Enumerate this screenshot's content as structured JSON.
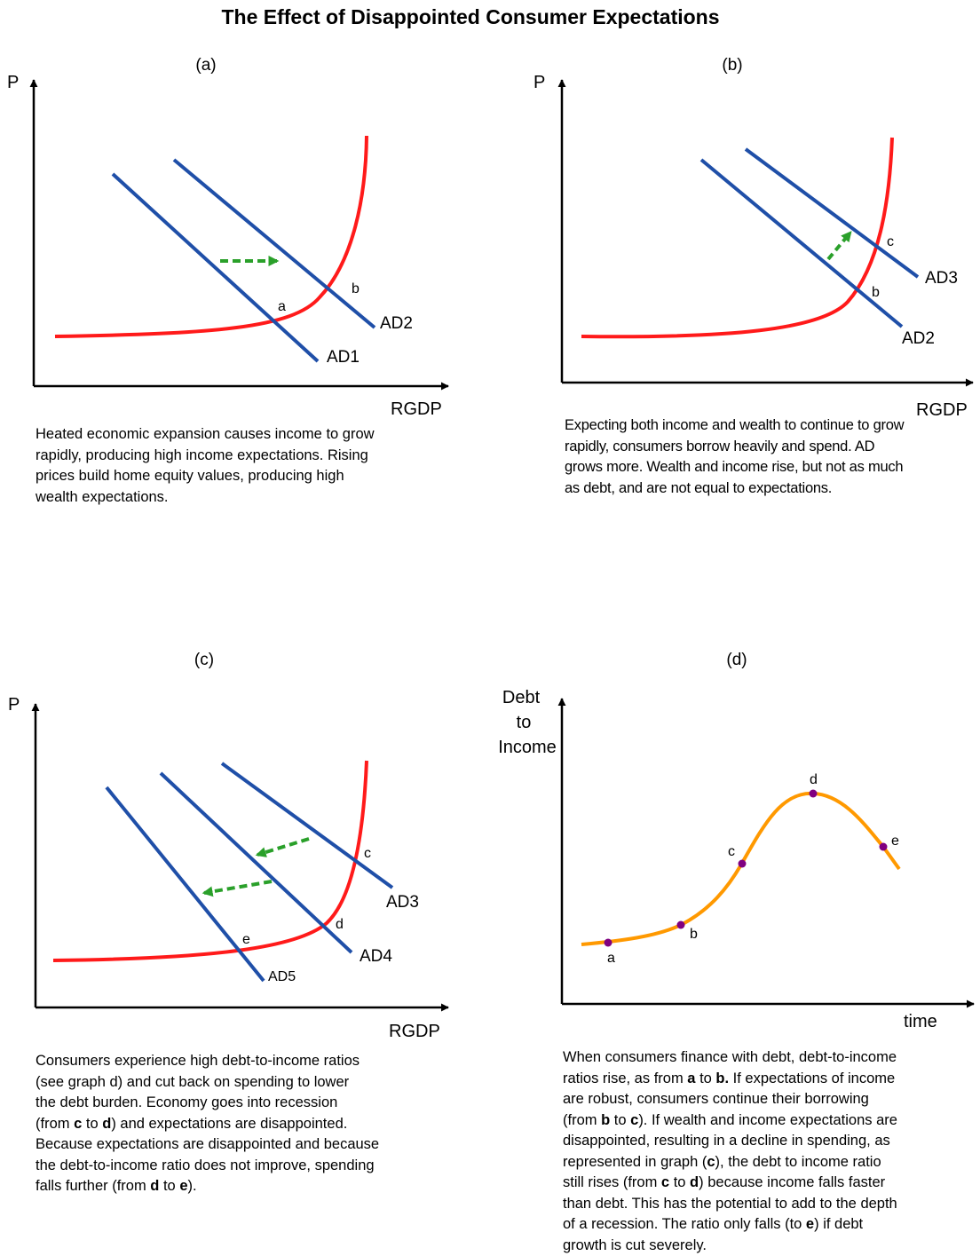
{
  "title": "The Effect of Disappointed Consumer Expectations",
  "colors": {
    "supply": "#ff1a1a",
    "demand": "#1f4fa8",
    "shift": "#2aa02a",
    "ratio": "#ff9900",
    "point": "#800080"
  },
  "panels": {
    "a": {
      "label": "(a)",
      "ylabel": "P",
      "xlabel": "RGDP",
      "curves": [
        "AD1",
        "AD2"
      ],
      "points": [
        "a",
        "b"
      ],
      "caption": [
        {
          "t": "Heated economic expansion causes income to grow\nrapidly, producing high income expectations.  Rising\nprices build home equity values, producing high\nwealth expectations."
        }
      ]
    },
    "b": {
      "label": "(b)",
      "ylabel": "P",
      "xlabel": "RGDP",
      "curves": [
        "AD2",
        "AD3"
      ],
      "points": [
        "b",
        "c"
      ],
      "caption": [
        {
          "t": "Expecting both income and wealth to continue to grow\nrapidly, consumers borrow heavily and spend.  AD\ngrows more.  Wealth and income rise, but not as much\nas debt, and are not equal to expectations."
        }
      ]
    },
    "c": {
      "label": "(c)",
      "ylabel": "P",
      "xlabel": "RGDP",
      "curves": [
        "AD3",
        "AD4",
        "AD5"
      ],
      "points": [
        "c",
        "d",
        "e"
      ],
      "caption": [
        {
          "t": "Consumers experience high debt-to-income ratios\n(see graph d) and cut back on spending to lower\nthe debt burden.  Economy goes into recession\n(from "
        },
        {
          "t": "c",
          "b": true
        },
        {
          "t": " to "
        },
        {
          "t": "d",
          "b": true
        },
        {
          "t": ") and expectations are disappointed.\nBecause expectations are disappointed and because\nthe debt-to-income ratio does not improve, spending\nfalls further (from "
        },
        {
          "t": "d",
          "b": true
        },
        {
          "t": " to "
        },
        {
          "t": "e",
          "b": true
        },
        {
          "t": ")."
        }
      ]
    },
    "d": {
      "label": "(d)",
      "ylabel": [
        "Debt",
        "to",
        "Income"
      ],
      "xlabel": "time",
      "points": [
        "a",
        "b",
        "c",
        "d",
        "e"
      ],
      "caption": [
        {
          "t": "When consumers finance with debt, debt-to-income\nratios rise, as from "
        },
        {
          "t": "a",
          "b": true
        },
        {
          "t": " to "
        },
        {
          "t": "b.",
          "b": true
        },
        {
          "t": "  If expectations of income\nare robust, consumers continue their borrowing\n(from "
        },
        {
          "t": "b",
          "b": true
        },
        {
          "t": " to "
        },
        {
          "t": "c",
          "b": true
        },
        {
          "t": ").  If wealth and income expectations are\ndisappointed, resulting in a decline in spending, as\nrepresented in graph ("
        },
        {
          "t": "c",
          "b": true
        },
        {
          "t": "), the debt to income ratio\nstill rises (from "
        },
        {
          "t": "c",
          "b": true
        },
        {
          "t": " to "
        },
        {
          "t": "d",
          "b": true
        },
        {
          "t": ") because income falls faster\nthan debt.  This has the potential to add to the depth\nof a recession.  The ratio only falls (to "
        },
        {
          "t": "e",
          "b": true
        },
        {
          "t": ") if debt\ngrowth is cut severely."
        }
      ]
    }
  }
}
